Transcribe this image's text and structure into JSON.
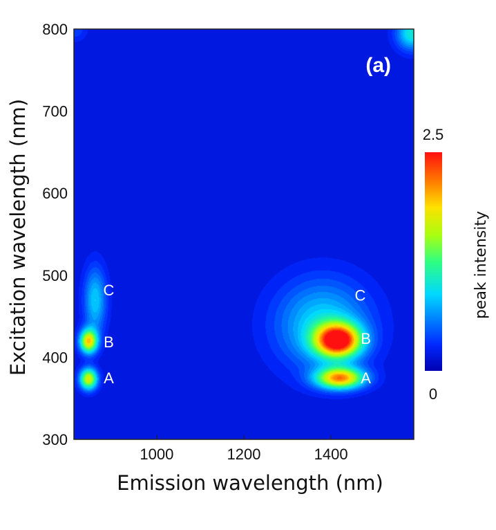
{
  "chart_data": {
    "type": "heatmap",
    "panel_label": "(a)",
    "xlabel": "Emission wavelength (nm)",
    "ylabel": "Excitation wavelength (nm)",
    "xlim": [
      810,
      1590
    ],
    "ylim": [
      300,
      800
    ],
    "x_ticks": [
      1000,
      1200,
      1400
    ],
    "y_ticks": [
      300,
      400,
      500,
      600,
      700,
      800
    ],
    "colorbar": {
      "title": "peak intensity",
      "min": 0,
      "max": 2.5,
      "min_label": "0",
      "max_label": "2.5"
    },
    "background_value": 0.15,
    "peaks": [
      {
        "label": "A",
        "x": 843,
        "y": 374,
        "value": 1.75,
        "label_pos": [
          890,
          375
        ]
      },
      {
        "label": "B",
        "x": 843,
        "y": 420,
        "value": 1.9,
        "label_pos": [
          890,
          419
        ]
      },
      {
        "label": "C",
        "x": 858,
        "y": 470,
        "value": 0.85,
        "label_pos": [
          890,
          482
        ]
      },
      {
        "label": "A",
        "x": 1420,
        "y": 375,
        "value": 2.05,
        "label_pos": [
          1480,
          375
        ]
      },
      {
        "label": "B",
        "x": 1415,
        "y": 421,
        "value": 2.5,
        "label_pos": [
          1480,
          423
        ]
      },
      {
        "label": "C",
        "x": 1380,
        "y": 440,
        "value": 0.9,
        "label_pos": [
          1467,
          476
        ]
      }
    ],
    "grid": false
  }
}
